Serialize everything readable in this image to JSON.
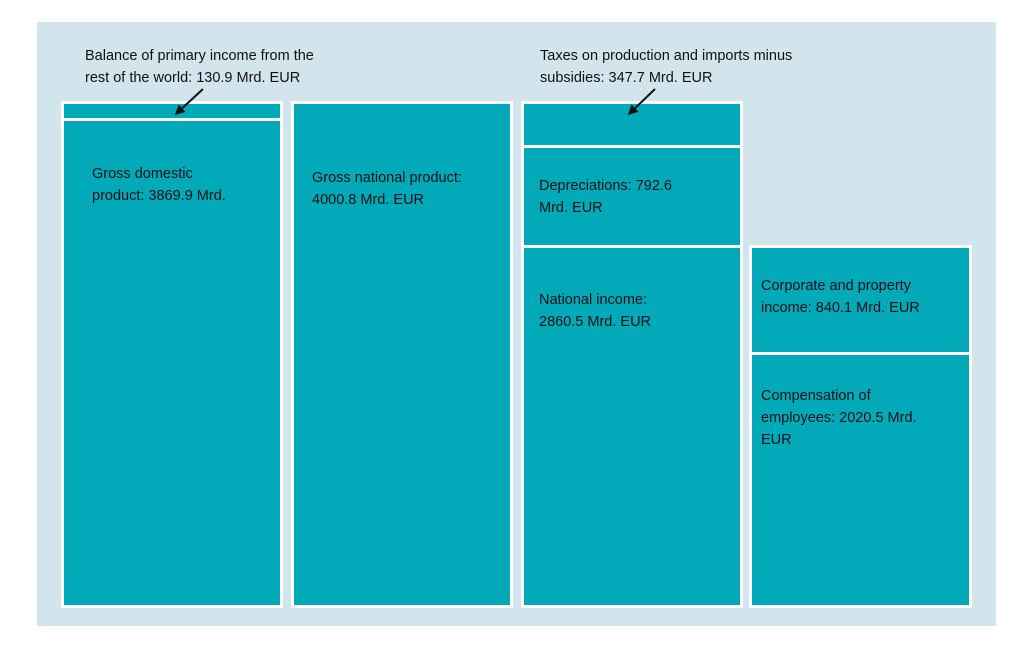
{
  "annotations": {
    "balance_primary_income": [
      "Balance of primary income from the",
      "rest of the world: 130.9 Mrd. EUR"
    ],
    "taxes_minus_subsidies": [
      "Taxes on production and imports minus",
      "subsidies: 347.7 Mrd. EUR"
    ]
  },
  "blocks": {
    "gdp": [
      "Gross domestic",
      "product: 3869.9 Mrd."
    ],
    "gnp": [
      "Gross national product:",
      "4000.8 Mrd. EUR"
    ],
    "depreciations": [
      "Depreciations: 792.6",
      "Mrd. EUR"
    ],
    "national_income": [
      "National income:",
      "2860.5 Mrd. EUR"
    ],
    "corporate_property_income": [
      "Corporate and property",
      "income: 840.1 Mrd. EUR"
    ],
    "compensation_employees": [
      "Compensation of",
      "employees: 2020.5 Mrd.",
      "EUR"
    ]
  },
  "colors": {
    "panel": "#d2e4ec",
    "block": "#02aab9",
    "border": "#ffffff",
    "arrow": "#111111"
  }
}
